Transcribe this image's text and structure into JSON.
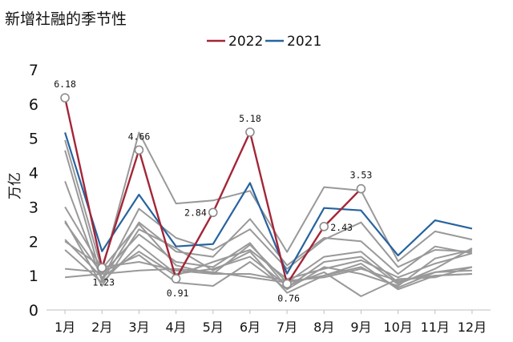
{
  "chart_data": {
    "type": "line",
    "title": "新增社融的季节性",
    "ylabel": "万亿",
    "xlabel": "",
    "categories": [
      "1月",
      "2月",
      "3月",
      "4月",
      "5月",
      "6月",
      "7月",
      "8月",
      "9月",
      "10月",
      "11月",
      "12月"
    ],
    "ylim": [
      0,
      7
    ],
    "yticks": [
      0,
      1,
      2,
      3,
      4,
      5,
      6,
      7
    ],
    "legend_position": "top",
    "series": [
      {
        "name": "2022",
        "color": "#a32638",
        "width": 2.4,
        "values": [
          6.18,
          1.23,
          4.66,
          0.91,
          2.84,
          5.18,
          0.76,
          2.43,
          3.53,
          null,
          null,
          null
        ]
      },
      {
        "name": "2021",
        "color": "#27639e",
        "width": 2.2,
        "values": [
          5.17,
          1.71,
          3.36,
          1.85,
          1.92,
          3.7,
          1.06,
          2.97,
          2.9,
          1.59,
          2.61,
          2.37
        ]
      }
    ],
    "background_series": [
      {
        "color": "#999999",
        "values": [
          4.95,
          1.15,
          5.17,
          3.1,
          3.19,
          3.47,
          1.69,
          3.58,
          3.48,
          1.42,
          2.29,
          2.05
        ]
      },
      {
        "color": "#999999",
        "values": [
          4.65,
          0.9,
          2.95,
          2.1,
          1.75,
          2.35,
          1.2,
          2.05,
          2.55,
          1.25,
          1.75,
          1.7
        ]
      },
      {
        "color": "#999999",
        "values": [
          3.75,
          0.85,
          2.55,
          1.7,
          1.55,
          2.65,
          1.3,
          2.1,
          2.0,
          1.05,
          1.85,
          1.65
        ]
      },
      {
        "color": "#999999",
        "values": [
          3.0,
          1.2,
          2.5,
          1.3,
          1.05,
          1.9,
          0.8,
          1.55,
          1.7,
          0.8,
          1.1,
          1.25
        ]
      },
      {
        "color": "#999999",
        "values": [
          2.55,
          1.05,
          2.2,
          1.4,
          1.25,
          1.95,
          0.65,
          1.4,
          1.55,
          0.75,
          1.2,
          1.8
        ]
      },
      {
        "color": "#999999",
        "values": [
          2.05,
          0.95,
          1.7,
          1.0,
          1.4,
          1.75,
          0.9,
          1.2,
          1.45,
          0.95,
          1.35,
          1.65
        ]
      },
      {
        "color": "#999999",
        "values": [
          2.6,
          0.7,
          2.35,
          1.8,
          1.15,
          1.7,
          0.5,
          1.0,
          1.35,
          0.6,
          1.0,
          1.05
        ]
      },
      {
        "color": "#999999",
        "values": [
          1.75,
          0.8,
          1.9,
          1.05,
          1.2,
          1.55,
          0.7,
          1.1,
          0.4,
          0.9,
          0.95,
          1.25
        ]
      },
      {
        "color": "#999999",
        "values": [
          1.2,
          1.1,
          1.6,
          0.8,
          0.7,
          1.4,
          0.6,
          1.25,
          1.05,
          0.7,
          1.5,
          1.75
        ]
      },
      {
        "color": "#999999",
        "values": [
          0.95,
          1.05,
          1.15,
          1.2,
          1.1,
          0.95,
          0.8,
          1.0,
          1.25,
          0.65,
          1.1,
          1.15
        ]
      },
      {
        "color": "#999999",
        "values": [
          2.0,
          1.25,
          1.4,
          1.15,
          1.05,
          1.05,
          0.85,
          0.95,
          1.2,
          0.85,
          1.0,
          1.05
        ]
      }
    ],
    "data_labels": [
      {
        "text": "6.18",
        "series": "2022",
        "index": 0,
        "place": "above"
      },
      {
        "text": "1.23",
        "series": "2022",
        "index": 1,
        "place": "below"
      },
      {
        "text": "4.66",
        "series": "2022",
        "index": 2,
        "place": "above"
      },
      {
        "text": "0.91",
        "series": "2022",
        "index": 3,
        "place": "below"
      },
      {
        "text": "2.84",
        "series": "2022",
        "index": 4,
        "place": "left"
      },
      {
        "text": "5.18",
        "series": "2022",
        "index": 5,
        "place": "above"
      },
      {
        "text": "0.76",
        "series": "2022",
        "index": 6,
        "place": "below"
      },
      {
        "text": "2.43",
        "series": "2022",
        "index": 7,
        "place": "right"
      },
      {
        "text": "3.53",
        "series": "2022",
        "index": 8,
        "place": "above"
      }
    ]
  }
}
